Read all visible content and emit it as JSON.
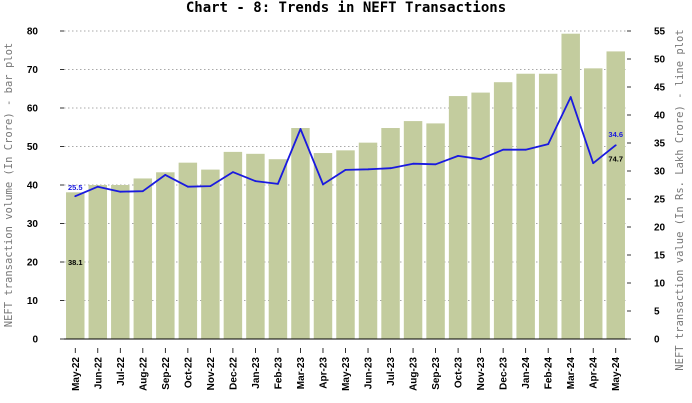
{
  "chart_data": {
    "type": "bar+line",
    "title": "Chart - 8: Trends in NEFT Transactions",
    "categories": [
      "May-22",
      "Jun-22",
      "Jul-22",
      "Aug-22",
      "Sep-22",
      "Oct-22",
      "Nov-22",
      "Dec-22",
      "Jan-23",
      "Feb-23",
      "Mar-23",
      "Apr-23",
      "May-23",
      "Jun-23",
      "Jul-23",
      "Aug-23",
      "Sep-23",
      "Oct-23",
      "Nov-23",
      "Dec-23",
      "Jan-24",
      "Feb-24",
      "Mar-24",
      "Apr-24",
      "May-24"
    ],
    "bar_series": {
      "color": "#c3cc9e",
      "values": [
        38.1,
        40.0,
        40.0,
        41.7,
        43.3,
        45.8,
        44.0,
        48.6,
        48.1,
        46.7,
        54.8,
        48.3,
        49.0,
        51.0,
        54.8,
        56.6,
        56.0,
        63.1,
        64.0,
        66.7,
        68.9,
        68.9,
        79.3,
        70.3,
        74.7
      ]
    },
    "line_series": {
      "color": "#1a1adf",
      "values": [
        25.5,
        27.2,
        26.3,
        26.4,
        29.3,
        27.2,
        27.3,
        29.8,
        28.2,
        27.7,
        37.5,
        27.6,
        30.2,
        30.3,
        30.5,
        31.3,
        31.2,
        32.7,
        32.1,
        33.8,
        33.8,
        34.8,
        43.2,
        31.4,
        34.6
      ]
    },
    "data_labels": {
      "bar_first": "38.1",
      "bar_last": "74.7",
      "line_first": "25.5",
      "line_last": "34.6"
    },
    "y_left": {
      "label": "NEFT transaction volume (In Crore) - bar plot",
      "min": 0,
      "max": 80,
      "ticks": [
        "0",
        "10",
        "20",
        "30",
        "40",
        "50",
        "60",
        "70",
        "80"
      ]
    },
    "y_right": {
      "label": "NEFT transaction value (In Rs. Lakh Crore) - line plot",
      "min": 0,
      "max": 55,
      "ticks": [
        "0",
        "5",
        "10",
        "15",
        "20",
        "25",
        "30",
        "35",
        "40",
        "45",
        "50",
        "55"
      ]
    },
    "grid": true
  }
}
